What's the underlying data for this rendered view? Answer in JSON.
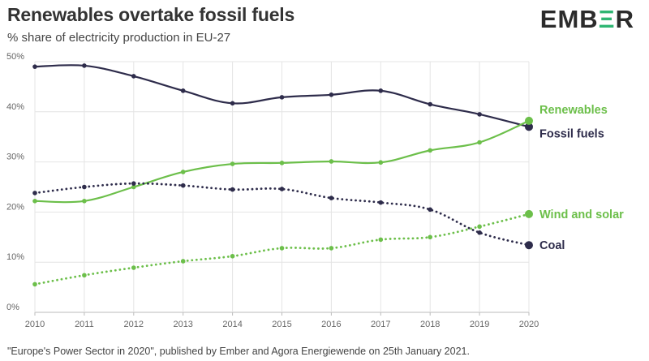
{
  "header": {
    "title": "Renewables overtake fossil fuels",
    "subtitle": "% share of electricity production in EU-27",
    "logo_left": "EMB",
    "logo_accent": "Ξ",
    "logo_right": "R"
  },
  "footer": {
    "source": "\"Europe's Power Sector in 2020\", published by Ember and Agora Energiewende on 25th January 2021."
  },
  "colors": {
    "dark": "#2e2c4b",
    "green": "#6cbf4a",
    "grid": "#e4e4e4",
    "axis": "#bbbbbb"
  },
  "chart_data": {
    "type": "line",
    "title": "Renewables overtake fossil fuels",
    "subtitle": "% share of electricity production in EU-27",
    "x": [
      2010,
      2011,
      2012,
      2013,
      2014,
      2015,
      2016,
      2017,
      2018,
      2019,
      2020
    ],
    "ylim": [
      0,
      50
    ],
    "yticks": [
      "0%",
      "10%",
      "20%",
      "30%",
      "40%",
      "50%"
    ],
    "ytick_values": [
      0,
      10,
      20,
      30,
      40,
      50
    ],
    "grid": true,
    "series": [
      {
        "name": "Fossil fuels",
        "color": "#2e2c4b",
        "style": "solid",
        "values": [
          49.0,
          49.2,
          47.1,
          44.2,
          41.7,
          42.9,
          43.4,
          44.2,
          41.5,
          39.5,
          37.0
        ]
      },
      {
        "name": "Renewables",
        "color": "#6cbf4a",
        "style": "solid",
        "values": [
          22.2,
          22.2,
          25.0,
          28.0,
          29.6,
          29.8,
          30.1,
          29.9,
          32.3,
          33.9,
          38.2
        ]
      },
      {
        "name": "Coal",
        "color": "#2e2c4b",
        "style": "dotted",
        "values": [
          23.8,
          25.0,
          25.7,
          25.3,
          24.5,
          24.6,
          22.8,
          21.9,
          20.5,
          15.9,
          13.4
        ]
      },
      {
        "name": "Wind and solar",
        "color": "#6cbf4a",
        "style": "dotted",
        "values": [
          5.6,
          7.4,
          8.9,
          10.2,
          11.2,
          12.8,
          12.8,
          14.5,
          15.0,
          17.1,
          19.6
        ]
      }
    ]
  }
}
